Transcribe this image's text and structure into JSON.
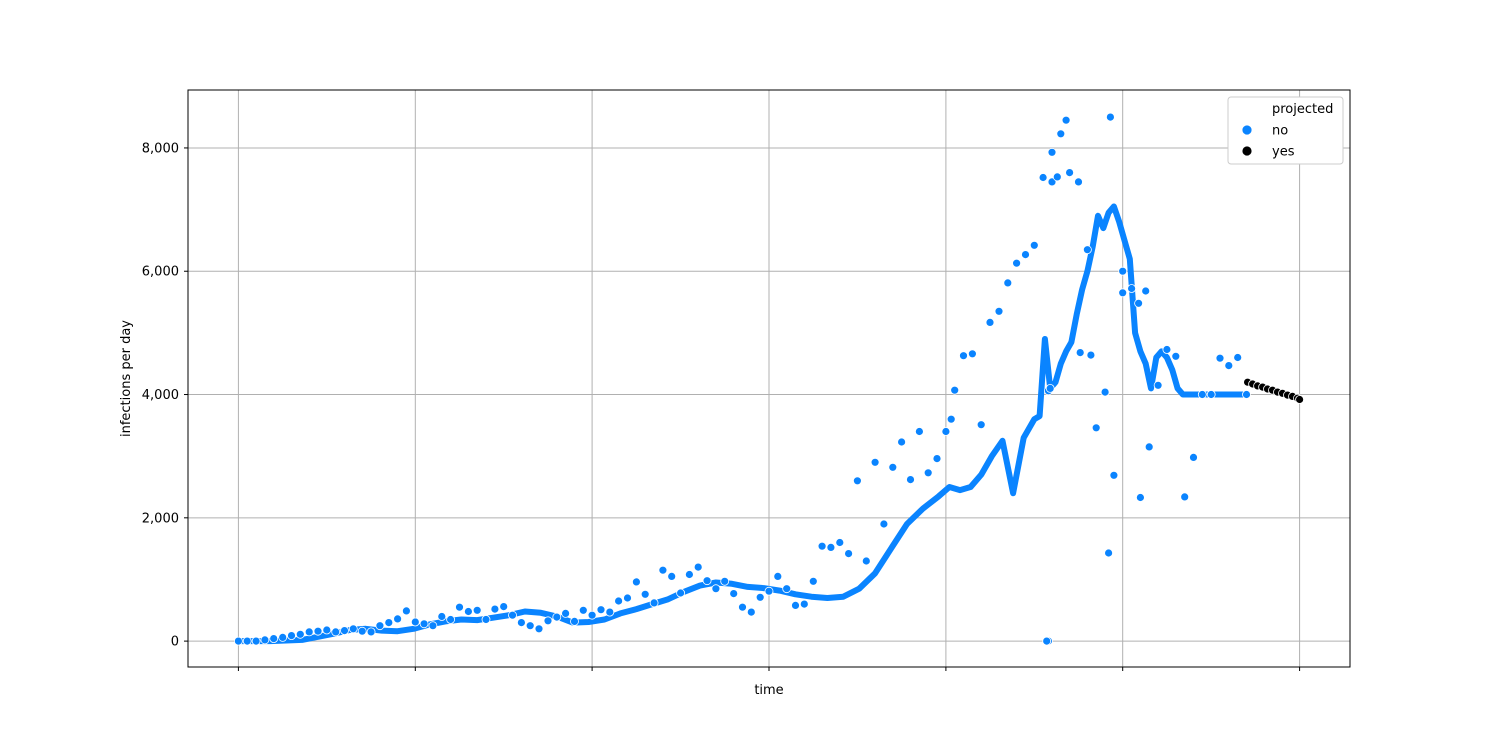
{
  "chart_data": {
    "type": "scatter",
    "title": "",
    "xlabel": "time",
    "ylabel": "infections per day",
    "ylim": [
      -420,
      8940
    ],
    "xlim": [
      -0.0475,
      1.0475
    ],
    "yticks": [
      0,
      2000,
      4000,
      6000,
      8000
    ],
    "ytick_labels": [
      "0",
      "2,000",
      "4,000",
      "6,000",
      "8,000"
    ],
    "xticks": [
      0,
      0.1667,
      0.3333,
      0.5,
      0.6667,
      0.8333,
      1.0
    ],
    "grid": true,
    "legend": {
      "title": "projected",
      "position": "top-right",
      "entries": [
        {
          "label": "no",
          "color": "#0a84ff"
        },
        {
          "label": "yes",
          "color": "#000000"
        }
      ]
    },
    "colors": {
      "no": "#0a84ff",
      "yes": "#000000",
      "trend": "#0a84ff"
    },
    "trend_line": {
      "name": "no",
      "x": [
        0.0,
        0.03,
        0.06,
        0.09,
        0.105,
        0.12,
        0.135,
        0.15,
        0.165,
        0.18,
        0.195,
        0.21,
        0.225,
        0.24,
        0.255,
        0.27,
        0.285,
        0.3,
        0.315,
        0.33,
        0.345,
        0.36,
        0.375,
        0.39,
        0.405,
        0.42,
        0.435,
        0.45,
        0.465,
        0.48,
        0.495,
        0.51,
        0.525,
        0.54,
        0.555,
        0.57,
        0.585,
        0.6,
        0.615,
        0.63,
        0.645,
        0.66,
        0.67,
        0.68,
        0.69,
        0.7,
        0.71,
        0.72,
        0.73,
        0.74,
        0.75,
        0.755,
        0.76,
        0.765,
        0.77,
        0.775,
        0.78,
        0.785,
        0.79,
        0.795,
        0.8,
        0.805,
        0.81,
        0.815,
        0.82,
        0.825,
        0.83,
        0.835,
        0.84,
        0.845,
        0.85,
        0.855,
        0.86,
        0.865,
        0.87,
        0.875,
        0.88,
        0.885,
        0.89,
        0.895,
        0.9,
        0.905,
        0.91,
        0.915,
        0.92,
        0.925,
        0.93,
        0.935,
        0.94,
        0.945,
        0.95
      ],
      "y": [
        0,
        0,
        20,
        120,
        180,
        200,
        170,
        160,
        200,
        270,
        320,
        350,
        340,
        380,
        420,
        480,
        460,
        400,
        300,
        310,
        350,
        450,
        520,
        600,
        680,
        800,
        900,
        950,
        930,
        880,
        860,
        820,
        760,
        720,
        700,
        720,
        850,
        1100,
        1500,
        1900,
        2150,
        2350,
        2500,
        2450,
        2500,
        2700,
        3000,
        3250,
        2400,
        3300,
        3600,
        3650,
        4900,
        4100,
        4200,
        4500,
        4700,
        4850,
        5300,
        5700,
        6000,
        6400,
        6900,
        6700,
        6950,
        7050,
        6800,
        6500,
        6200,
        5000,
        4700,
        4500,
        4100,
        4600,
        4700,
        4600,
        4400,
        4100,
        4000,
        4000,
        4000,
        4000,
        4000,
        4000,
        4000,
        4000,
        4000,
        4000,
        4000,
        4000,
        4000
      ]
    },
    "series": [
      {
        "name": "no",
        "x": [
          0.0,
          0.0083,
          0.0167,
          0.025,
          0.0333,
          0.0417,
          0.05,
          0.0583,
          0.0667,
          0.075,
          0.0833,
          0.0917,
          0.1,
          0.1083,
          0.1167,
          0.125,
          0.1333,
          0.1417,
          0.15,
          0.1583,
          0.1667,
          0.175,
          0.1833,
          0.1917,
          0.2,
          0.2083,
          0.2167,
          0.225,
          0.2333,
          0.2417,
          0.25,
          0.2583,
          0.2667,
          0.275,
          0.2833,
          0.2917,
          0.3,
          0.3083,
          0.3167,
          0.325,
          0.3333,
          0.3417,
          0.35,
          0.3583,
          0.3667,
          0.375,
          0.3833,
          0.3917,
          0.4,
          0.4083,
          0.4167,
          0.425,
          0.4333,
          0.4417,
          0.45,
          0.4583,
          0.4667,
          0.475,
          0.4833,
          0.4917,
          0.5,
          0.5083,
          0.5167,
          0.525,
          0.5333,
          0.5417,
          0.55,
          0.5583,
          0.5667,
          0.575,
          0.5833,
          0.5917,
          0.6,
          0.6083,
          0.6167,
          0.625,
          0.6333,
          0.6417,
          0.65,
          0.6583,
          0.6667,
          0.6717,
          0.675,
          0.6833,
          0.6917,
          0.7,
          0.7083,
          0.7167,
          0.725,
          0.7333,
          0.7417,
          0.75,
          0.7583,
          0.7667,
          0.7717,
          0.775,
          0.78,
          0.7833,
          0.7917,
          0.8,
          0.8033,
          0.8083,
          0.8167,
          0.82,
          0.825,
          0.8333,
          0.8417,
          0.85,
          0.8583,
          0.8667,
          0.875,
          0.8833,
          0.8917,
          0.9,
          0.9083,
          0.9167,
          0.925,
          0.9333,
          0.9417,
          0.95,
          0.7667,
          0.7633,
          0.7617,
          0.7633,
          0.765,
          0.8217,
          0.8333,
          0.8483,
          0.855,
          0.7933
        ],
        "y": [
          0,
          0,
          0,
          20,
          40,
          60,
          90,
          110,
          150,
          160,
          180,
          150,
          170,
          200,
          160,
          150,
          250,
          300,
          360,
          490,
          310,
          280,
          250,
          400,
          350,
          550,
          480,
          500,
          350,
          520,
          560,
          420,
          300,
          250,
          200,
          330,
          390,
          450,
          320,
          500,
          420,
          510,
          470,
          650,
          700,
          960,
          760,
          620,
          1150,
          1050,
          780,
          1080,
          1200,
          980,
          850,
          970,
          770,
          550,
          470,
          710,
          810,
          1050,
          850,
          580,
          600,
          970,
          1540,
          1520,
          1600,
          1420,
          2600,
          1300,
          2900,
          1900,
          2820,
          3230,
          2620,
          3400,
          2730,
          2960,
          3400,
          3600,
          4070,
          4630,
          4660,
          3510,
          5170,
          5350,
          5810,
          6130,
          6270,
          6420,
          7520,
          7450,
          7530,
          8230,
          8450,
          7600,
          7450,
          6350,
          4640,
          3460,
          4040,
          1430,
          2690,
          5650,
          5720,
          2330,
          3150,
          4150,
          4730,
          4620,
          2340,
          2980,
          4000,
          4000,
          4590,
          4470,
          4600,
          4000,
          7930,
          0,
          0,
          4060,
          4100,
          8500,
          6000,
          5480,
          5680,
          4680
        ]
      },
      {
        "name": "yes",
        "x": [
          0.951,
          0.9557,
          0.9604,
          0.9651,
          0.9698,
          0.9745,
          0.9792,
          0.9839,
          0.9886,
          0.9933,
          0.998,
          1.0
        ],
        "y": [
          4200,
          4170,
          4140,
          4120,
          4090,
          4070,
          4040,
          4020,
          3990,
          3970,
          3940,
          3920
        ]
      }
    ]
  }
}
